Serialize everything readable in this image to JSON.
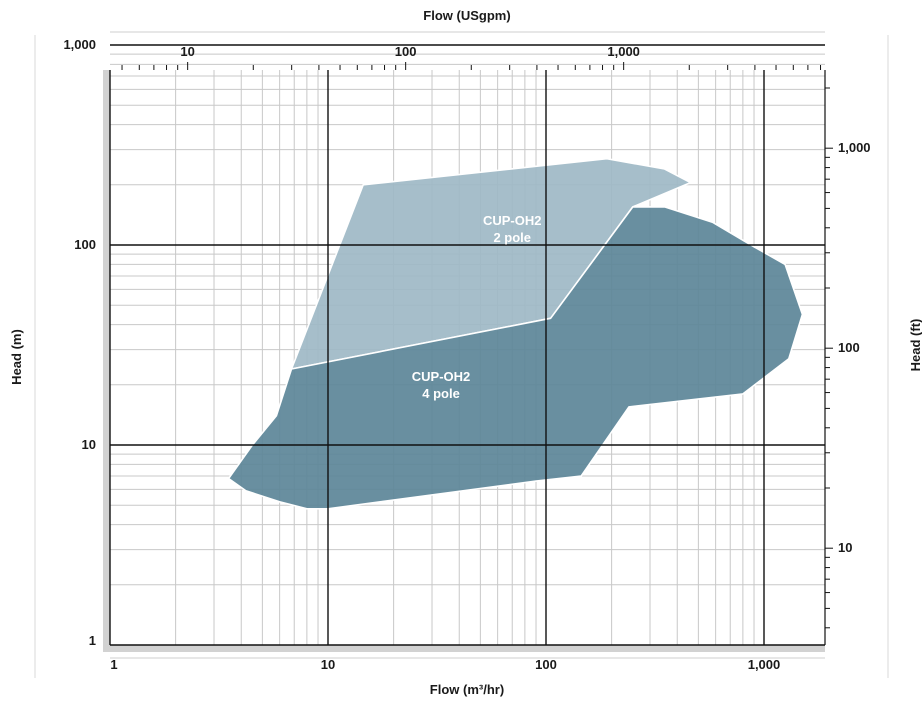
{
  "chart_data": {
    "type": "area",
    "xlabel_bottom": "Flow (m³/hr)",
    "xlabel_top": "Flow (USgpm)",
    "ylabel_left": "Head (m)",
    "ylabel_right": "Head (ft)",
    "x_scale": "log",
    "y_scale": "log",
    "xlim": [
      1,
      2000
    ],
    "ylim": [
      1,
      1000
    ],
    "grid": true,
    "bottom_ticks": [
      "1",
      "10",
      "100",
      "1,000"
    ],
    "left_ticks": [
      "1",
      "10",
      "100",
      "1,000"
    ],
    "top_ticks": [
      "10",
      "100",
      "1,000"
    ],
    "right_ticks": [
      "10",
      "100",
      "1,000"
    ],
    "series": [
      {
        "name": "CUP-OH2 2 pole",
        "label_line1": "CUP-OH2",
        "label_line2": "2 pole",
        "color": "#9fb9c6",
        "label_at": [
          70,
          120
        ],
        "points": [
          [
            6.8,
            24
          ],
          [
            14.5,
            200
          ],
          [
            190,
            270
          ],
          [
            350,
            240
          ],
          [
            460,
            205
          ],
          [
            250,
            155
          ],
          [
            105,
            43
          ],
          [
            6.8,
            24
          ]
        ]
      },
      {
        "name": "CUP-OH2 4 pole",
        "label_line1": "CUP-OH2",
        "label_line2": "4 pole",
        "color": "#5e8799",
        "label_at": [
          33,
          20
        ],
        "points": [
          [
            6.8,
            24
          ],
          [
            105,
            43
          ],
          [
            250,
            155
          ],
          [
            350,
            155
          ],
          [
            580,
            130
          ],
          [
            900,
            98
          ],
          [
            1250,
            80
          ],
          [
            1500,
            45
          ],
          [
            1300,
            27
          ],
          [
            800,
            18
          ],
          [
            240,
            15.5
          ],
          [
            145,
            7
          ],
          [
            90,
            6.6
          ],
          [
            10,
            4.8
          ],
          [
            8,
            4.8
          ],
          [
            6,
            5.2
          ],
          [
            4.2,
            5.9
          ],
          [
            3.5,
            6.8
          ],
          [
            4.5,
            10
          ],
          [
            5.8,
            14
          ],
          [
            6.8,
            24
          ]
        ]
      }
    ]
  }
}
